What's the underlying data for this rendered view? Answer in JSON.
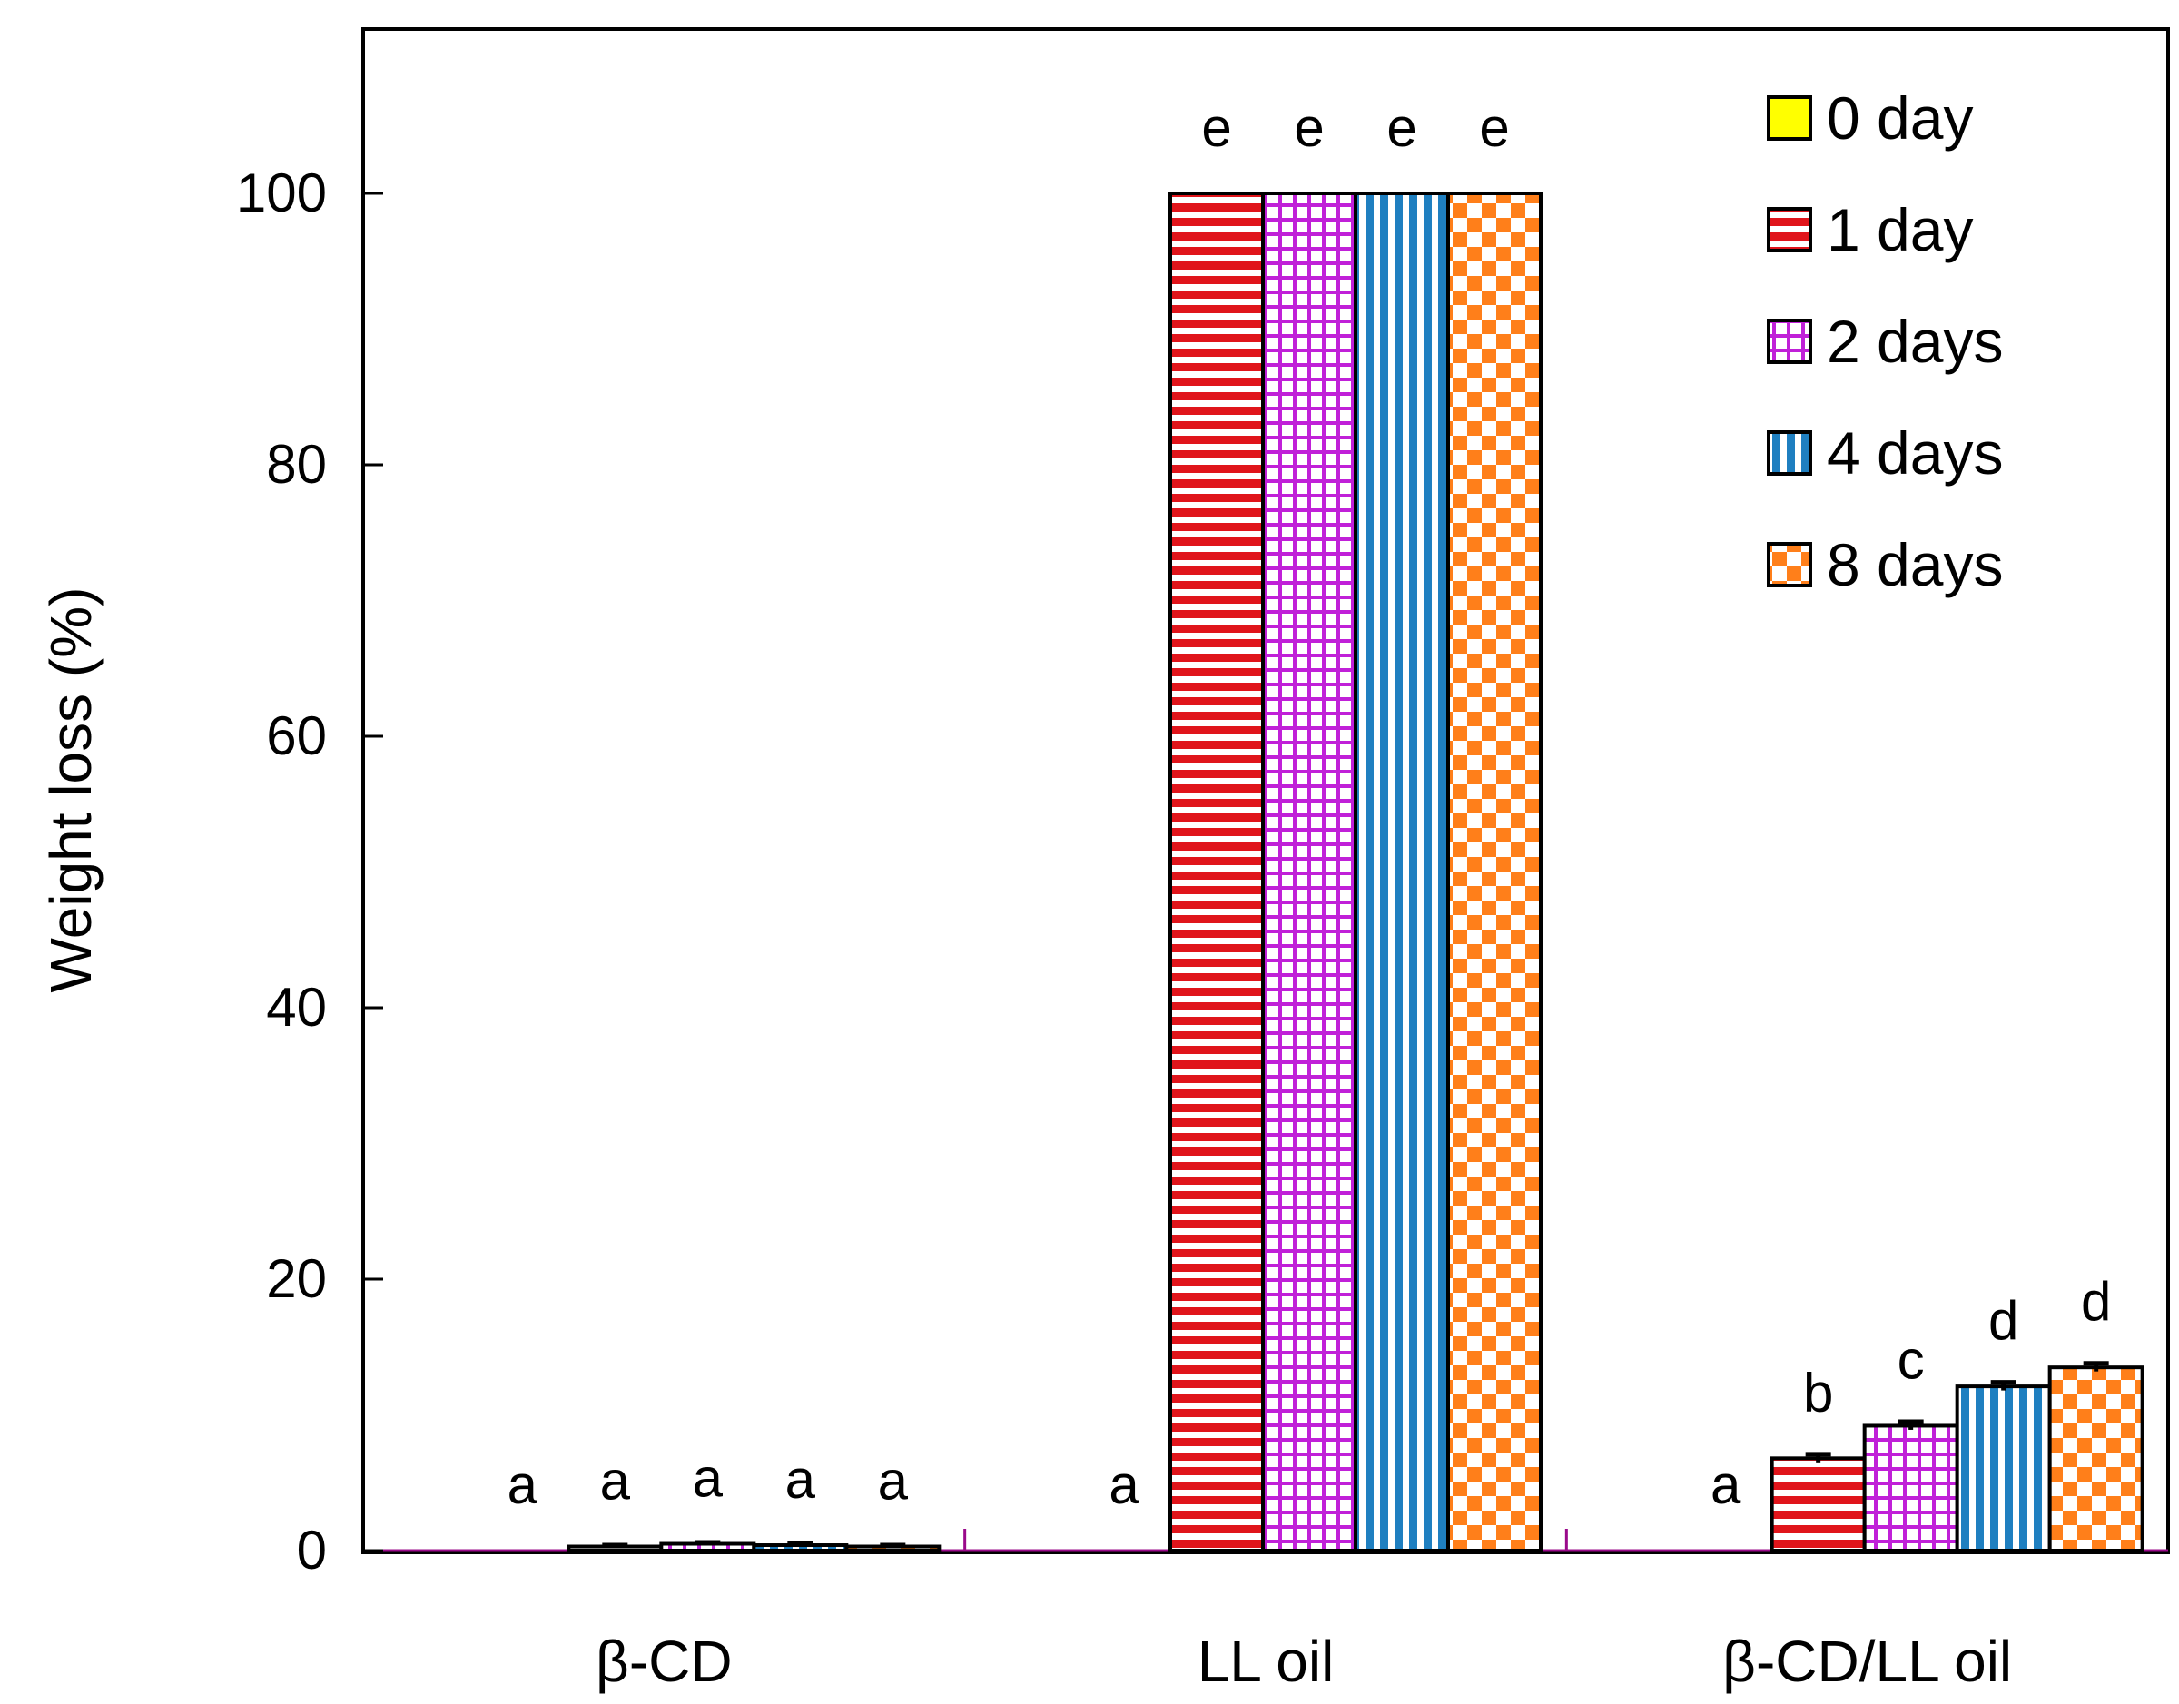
{
  "chart_data": {
    "type": "bar",
    "title": "",
    "xlabel": "",
    "ylabel": "Weight loss (%)",
    "ylim": [
      0,
      110
    ],
    "yticks": [
      "0",
      "20",
      "40",
      "60",
      "80",
      "100"
    ],
    "grid": false,
    "legend_position": "top-right",
    "categories": [
      "β-CD",
      "LL oil",
      "β-CD/LL oil"
    ],
    "series": [
      {
        "name": "0 day",
        "values": [
          0.0,
          0.0,
          0.0
        ],
        "errors": [
          0,
          0,
          0
        ],
        "labels": [
          "a",
          "a",
          "a"
        ],
        "color": "#ffff00",
        "pattern": "solid"
      },
      {
        "name": "1 day",
        "values": [
          0.3,
          100.0,
          6.8
        ],
        "errors": [
          0.1,
          0,
          0.3
        ],
        "labels": [
          "a",
          "e",
          "b"
        ],
        "color": "#e0151b",
        "pattern": "horizontal-stripes"
      },
      {
        "name": "2 days",
        "values": [
          0.5,
          100.0,
          9.2
        ],
        "errors": [
          0.1,
          0,
          0.3
        ],
        "labels": [
          "a",
          "e",
          "c"
        ],
        "color": "#c020d8",
        "pattern": "grid"
      },
      {
        "name": "4 days",
        "values": [
          0.4,
          100.0,
          12.1
        ],
        "errors": [
          0.1,
          0,
          0.3
        ],
        "labels": [
          "a",
          "e",
          "d"
        ],
        "color": "#1f7fc0",
        "pattern": "vertical-stripes"
      },
      {
        "name": "8 days",
        "values": [
          0.3,
          100.0,
          13.5
        ],
        "errors": [
          0.1,
          0,
          0.3
        ],
        "labels": [
          "a",
          "e",
          "d"
        ],
        "color": "#ff7f1a",
        "pattern": "checker"
      }
    ]
  }
}
